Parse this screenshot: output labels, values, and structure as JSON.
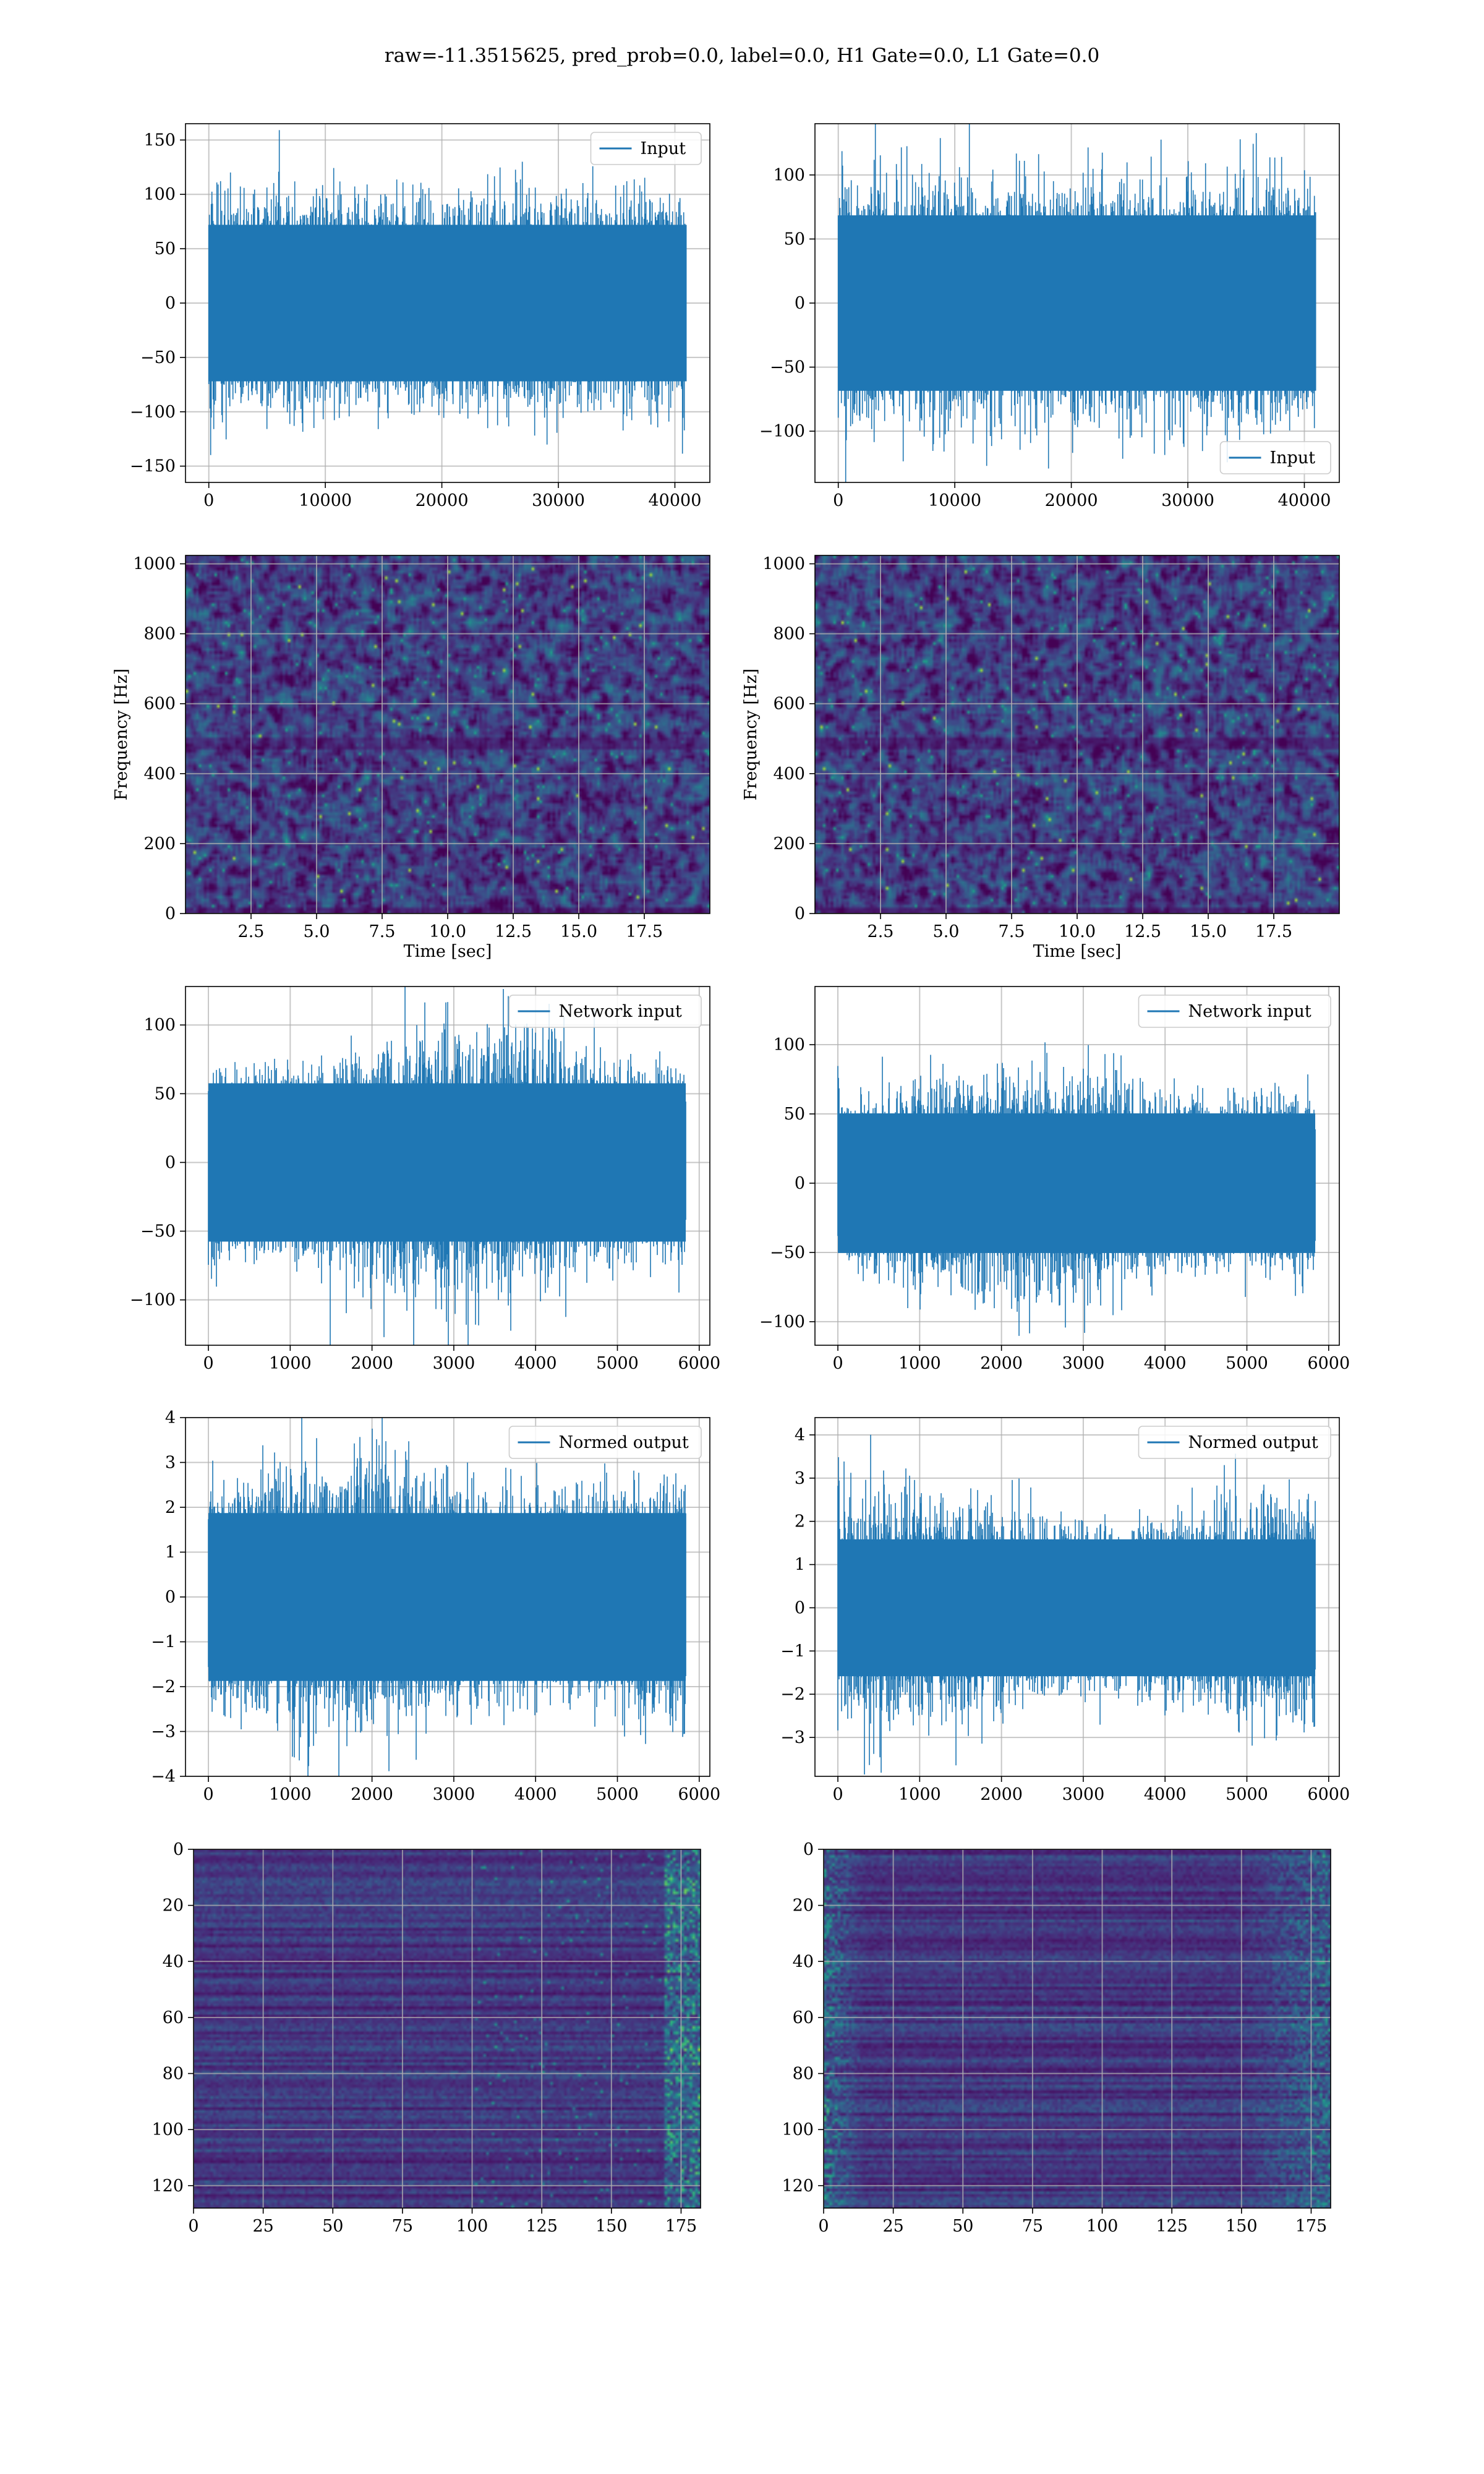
{
  "figure": {
    "title": "raw=-11.3515625, pred_prob=0.0, label=0.0, H1 Gate=0.0, L1 Gate=0.0"
  },
  "colors": {
    "series": "#1f77b4",
    "grid": "#b0b0b0",
    "frame": "#000000",
    "viridis_dark": "#440154"
  },
  "chart_data": [
    {
      "id": "input-h1",
      "type": "line",
      "row": 0,
      "col": 0,
      "series": [
        {
          "name": "Input",
          "n_samples": 40960,
          "amplitude_approx": 100
        }
      ],
      "xlim": [
        -2000,
        43000
      ],
      "ylim": [
        -165,
        165
      ],
      "xticks": [
        0,
        10000,
        20000,
        30000,
        40000
      ],
      "xtick_labels": [
        "0",
        "10000",
        "20000",
        "30000",
        "40000"
      ],
      "yticks": [
        -150,
        -100,
        -50,
        0,
        50,
        100,
        150
      ],
      "ytick_labels": [
        "−150",
        "−100",
        "−50",
        "0",
        "50",
        "100",
        "150"
      ],
      "grid": true,
      "legend": "upper right"
    },
    {
      "id": "input-l1",
      "type": "line",
      "row": 0,
      "col": 1,
      "series": [
        {
          "name": "Input",
          "n_samples": 40960,
          "amplitude_approx": 95
        }
      ],
      "xlim": [
        -2000,
        43000
      ],
      "ylim": [
        -140,
        140
      ],
      "xticks": [
        0,
        10000,
        20000,
        30000,
        40000
      ],
      "xtick_labels": [
        "0",
        "10000",
        "20000",
        "30000",
        "40000"
      ],
      "yticks": [
        -100,
        -50,
        0,
        50,
        100
      ],
      "ytick_labels": [
        "−100",
        "−50",
        "0",
        "50",
        "100"
      ],
      "grid": true,
      "legend": "lower right"
    },
    {
      "id": "spectrogram-h1",
      "type": "heatmap",
      "row": 1,
      "col": 0,
      "xlabel": "Time [sec]",
      "ylabel": "Frequency [Hz]",
      "xlim": [
        0,
        20
      ],
      "ylim": [
        0,
        1024
      ],
      "xticks": [
        2.5,
        5,
        7.5,
        10,
        12.5,
        15,
        17.5
      ],
      "xtick_labels": [
        "2.5",
        "5.0",
        "7.5",
        "10.0",
        "12.5",
        "15.0",
        "17.5"
      ],
      "yticks": [
        0,
        200,
        400,
        600,
        800,
        1000
      ],
      "ytick_labels": [
        "0",
        "200",
        "400",
        "600",
        "800",
        "1000"
      ],
      "grid": true,
      "colormap": "viridis"
    },
    {
      "id": "spectrogram-l1",
      "type": "heatmap",
      "row": 1,
      "col": 1,
      "xlabel": "Time [sec]",
      "ylabel": "Frequency [Hz]",
      "xlim": [
        0,
        20
      ],
      "ylim": [
        0,
        1024
      ],
      "xticks": [
        2.5,
        5,
        7.5,
        10,
        12.5,
        15,
        17.5
      ],
      "xtick_labels": [
        "2.5",
        "5.0",
        "7.5",
        "10.0",
        "12.5",
        "15.0",
        "17.5"
      ],
      "yticks": [
        0,
        200,
        400,
        600,
        800,
        1000
      ],
      "ytick_labels": [
        "0",
        "200",
        "400",
        "600",
        "800",
        "1000"
      ],
      "grid": true,
      "colormap": "viridis"
    },
    {
      "id": "network-input-h1",
      "type": "line",
      "row": 2,
      "col": 0,
      "series": [
        {
          "name": "Network input",
          "n_samples": 5832,
          "amplitude_approx": 80
        }
      ],
      "xlim": [
        -280,
        6130
      ],
      "ylim": [
        -133,
        128
      ],
      "xticks": [
        0,
        1000,
        2000,
        3000,
        4000,
        5000,
        6000
      ],
      "xtick_labels": [
        "0",
        "1000",
        "2000",
        "3000",
        "4000",
        "5000",
        "6000"
      ],
      "yticks": [
        -100,
        -50,
        0,
        50,
        100
      ],
      "ytick_labels": [
        "−100",
        "−50",
        "0",
        "50",
        "100"
      ],
      "grid": true,
      "legend": "upper right"
    },
    {
      "id": "network-input-l1",
      "type": "line",
      "row": 2,
      "col": 1,
      "series": [
        {
          "name": "Network input",
          "n_samples": 5832,
          "amplitude_approx": 70
        }
      ],
      "xlim": [
        -280,
        6130
      ],
      "ylim": [
        -117,
        142
      ],
      "xticks": [
        0,
        1000,
        2000,
        3000,
        4000,
        5000,
        6000
      ],
      "xtick_labels": [
        "0",
        "1000",
        "2000",
        "3000",
        "4000",
        "5000",
        "6000"
      ],
      "yticks": [
        -100,
        -50,
        0,
        50,
        100
      ],
      "ytick_labels": [
        "−100",
        "−50",
        "0",
        "50",
        "100"
      ],
      "grid": true,
      "legend": "upper right"
    },
    {
      "id": "normed-output-h1",
      "type": "line",
      "row": 3,
      "col": 0,
      "series": [
        {
          "name": "Normed output",
          "n_samples": 5832,
          "amplitude_approx": 2.6
        }
      ],
      "xlim": [
        -280,
        6130
      ],
      "ylim": [
        -4,
        4
      ],
      "xticks": [
        0,
        1000,
        2000,
        3000,
        4000,
        5000,
        6000
      ],
      "xtick_labels": [
        "0",
        "1000",
        "2000",
        "3000",
        "4000",
        "5000",
        "6000"
      ],
      "yticks": [
        -4,
        -3,
        -2,
        -1,
        0,
        1,
        2,
        3,
        4
      ],
      "ytick_labels": [
        "−4",
        "−3",
        "−2",
        "−1",
        "0",
        "1",
        "2",
        "3",
        "4"
      ],
      "grid": true,
      "legend": "upper right"
    },
    {
      "id": "normed-output-l1",
      "type": "line",
      "row": 3,
      "col": 1,
      "series": [
        {
          "name": "Normed output",
          "n_samples": 5832,
          "amplitude_approx": 2.2
        }
      ],
      "xlim": [
        -280,
        6130
      ],
      "ylim": [
        -3.9,
        4.4
      ],
      "xticks": [
        0,
        1000,
        2000,
        3000,
        4000,
        5000,
        6000
      ],
      "xtick_labels": [
        "0",
        "1000",
        "2000",
        "3000",
        "4000",
        "5000",
        "6000"
      ],
      "yticks": [
        -3,
        -2,
        -1,
        0,
        1,
        2,
        3,
        4
      ],
      "ytick_labels": [
        "−3",
        "−2",
        "−1",
        "0",
        "1",
        "2",
        "3",
        "4"
      ],
      "grid": true,
      "legend": "upper right"
    },
    {
      "id": "embedding-h1",
      "type": "heatmap",
      "row": 4,
      "col": 0,
      "xlim": [
        0,
        182
      ],
      "ylim": [
        128,
        0
      ],
      "xticks": [
        0,
        25,
        50,
        75,
        100,
        125,
        150,
        175
      ],
      "xtick_labels": [
        "0",
        "25",
        "50",
        "75",
        "100",
        "125",
        "150",
        "175"
      ],
      "yticks": [
        0,
        20,
        40,
        60,
        80,
        100,
        120
      ],
      "ytick_labels": [
        "0",
        "20",
        "40",
        "60",
        "80",
        "100",
        "120"
      ],
      "grid": true,
      "colormap": "viridis",
      "bright_edge": "right"
    },
    {
      "id": "embedding-l1",
      "type": "heatmap",
      "row": 4,
      "col": 1,
      "xlim": [
        0,
        182
      ],
      "ylim": [
        128,
        0
      ],
      "xticks": [
        0,
        25,
        50,
        75,
        100,
        125,
        150,
        175
      ],
      "xtick_labels": [
        "0",
        "25",
        "50",
        "75",
        "100",
        "125",
        "150",
        "175"
      ],
      "yticks": [
        0,
        20,
        40,
        60,
        80,
        100,
        120
      ],
      "ytick_labels": [
        "0",
        "20",
        "40",
        "60",
        "80",
        "100",
        "120"
      ],
      "grid": true,
      "colormap": "viridis",
      "bright_edge": "left-and-right"
    }
  ]
}
